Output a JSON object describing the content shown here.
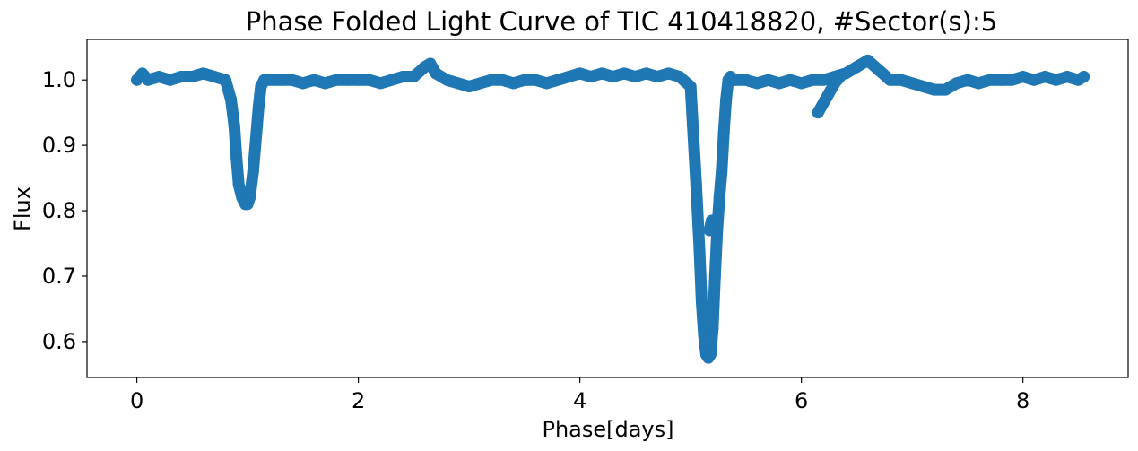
{
  "chart_data": {
    "type": "scatter",
    "title": "Phase Folded Light Curve of TIC 410418820, #Sector(s):5",
    "xlabel": "Phase[days]",
    "ylabel": "Flux",
    "xlim": [
      -0.45,
      8.95
    ],
    "ylim": [
      0.545,
      1.062
    ],
    "xticks": [
      0,
      2,
      4,
      6,
      8
    ],
    "yticks": [
      0.6,
      0.7,
      0.8,
      0.9,
      1.0
    ],
    "xtick_labels": [
      "0",
      "2",
      "4",
      "6",
      "8"
    ],
    "ytick_labels": [
      "0.6",
      "0.7",
      "0.8",
      "0.9",
      "1.0"
    ],
    "grid": false,
    "series": [
      {
        "color": "#1f77b4",
        "x": [
          0.0,
          0.05,
          0.1,
          0.2,
          0.3,
          0.4,
          0.5,
          0.6,
          0.7,
          0.8,
          0.85,
          0.88,
          0.9,
          0.92,
          0.95,
          0.98,
          1.0,
          1.02,
          1.05,
          1.08,
          1.1,
          1.12,
          1.15,
          1.2,
          1.3,
          1.4,
          1.5,
          1.6,
          1.7,
          1.8,
          1.9,
          2.0,
          2.1,
          2.2,
          2.3,
          2.4,
          2.5,
          2.6,
          2.65,
          2.7,
          2.8,
          2.9,
          3.0,
          3.1,
          3.2,
          3.3,
          3.4,
          3.5,
          3.6,
          3.7,
          3.8,
          3.9,
          4.0,
          4.1,
          4.2,
          4.3,
          4.4,
          4.5,
          4.6,
          4.7,
          4.8,
          4.9,
          5.0,
          5.02,
          5.05,
          5.08,
          5.1,
          5.12,
          5.14,
          5.16,
          5.18,
          5.2,
          5.22,
          5.24,
          5.26,
          5.28,
          5.3,
          5.32,
          5.34,
          5.36,
          5.4,
          5.5,
          5.6,
          5.7,
          5.8,
          5.9,
          6.0,
          6.1,
          6.2,
          6.3,
          6.4,
          6.5,
          6.6,
          6.7,
          6.8,
          6.9,
          7.0,
          7.1,
          7.2,
          7.3,
          7.4,
          7.5,
          7.6,
          7.7,
          7.8,
          7.9,
          8.0,
          8.1,
          8.2,
          8.3,
          8.4,
          8.5,
          8.55
        ],
        "y": [
          1.0,
          1.01,
          1.0,
          1.005,
          1.0,
          1.005,
          1.005,
          1.01,
          1.005,
          1.0,
          0.97,
          0.93,
          0.88,
          0.84,
          0.82,
          0.81,
          0.81,
          0.82,
          0.86,
          0.92,
          0.96,
          0.99,
          1.0,
          1.0,
          1.0,
          1.0,
          0.995,
          1.0,
          0.995,
          1.0,
          1.0,
          1.0,
          1.0,
          0.995,
          1.0,
          1.005,
          1.005,
          1.02,
          1.025,
          1.01,
          1.0,
          0.995,
          0.99,
          0.995,
          1.0,
          1.0,
          0.995,
          1.0,
          1.0,
          0.995,
          1.0,
          1.005,
          1.01,
          1.005,
          1.01,
          1.005,
          1.01,
          1.005,
          1.01,
          1.005,
          1.01,
          1.005,
          0.99,
          0.93,
          0.84,
          0.74,
          0.66,
          0.61,
          0.58,
          0.575,
          0.58,
          0.62,
          0.7,
          0.77,
          0.82,
          0.86,
          0.92,
          0.97,
          1.0,
          1.005,
          1.0,
          1.0,
          0.995,
          1.0,
          0.995,
          1.0,
          0.995,
          1.0,
          1.0,
          1.005,
          1.01,
          1.02,
          1.03,
          1.015,
          1.0,
          1.0,
          0.995,
          0.99,
          0.985,
          0.985,
          0.995,
          1.0,
          0.995,
          1.0,
          1.0,
          1.0,
          1.005,
          1.0,
          1.005,
          1.0,
          1.005,
          1.0,
          1.005
        ]
      },
      {
        "color": "#1f77b4",
        "x": [
          6.15,
          6.2,
          6.25,
          6.3,
          6.35
        ],
        "y": [
          0.95,
          0.965,
          0.98,
          0.995,
          1.005
        ]
      },
      {
        "color": "#1f77b4",
        "x": [
          5.17,
          5.19,
          5.21,
          5.23
        ],
        "y": [
          0.77,
          0.785,
          0.78,
          0.77
        ]
      }
    ]
  }
}
